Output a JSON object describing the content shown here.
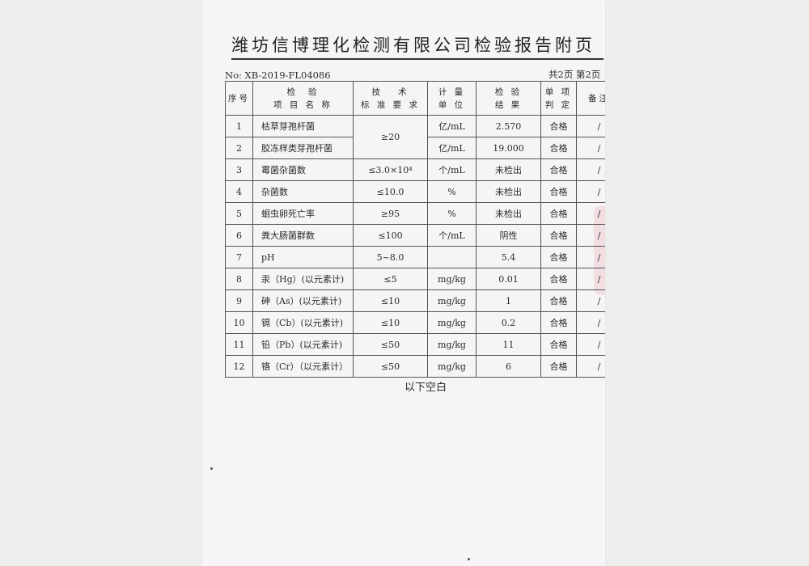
{
  "document": {
    "title": "潍坊信博理化检测有限公司检验报告附页",
    "report_no": "No:  XB-2019-FL04086",
    "page_info": "共2页  第2页",
    "headers": [
      "序号",
      "检  验\n项 目 名 称",
      "技   术\n标 准 要 求",
      "计 量\n单 位",
      "检 验\n结 果",
      "单 项\n判 定",
      "备注"
    ],
    "rows": [
      {
        "no": "1",
        "item": "枯草芽孢杆菌",
        "standard": "≥20",
        "unit": "亿/mL",
        "result": "2.570",
        "judge": "合格",
        "remark": "/"
      },
      {
        "no": "2",
        "item": "胶冻样类芽孢杆菌",
        "standard": "",
        "unit": "亿/mL",
        "result": "19.000",
        "judge": "合格",
        "remark": "/"
      },
      {
        "no": "3",
        "item": "霉菌杂菌数",
        "standard": "≤3.0×10⁴",
        "unit": "个/mL",
        "result": "未检出",
        "judge": "合格",
        "remark": "/"
      },
      {
        "no": "4",
        "item": "杂菌数",
        "standard": "≤10.0",
        "unit": "%",
        "result": "未检出",
        "judge": "合格",
        "remark": "/"
      },
      {
        "no": "5",
        "item": "蛔虫卵死亡率",
        "standard": "≥95",
        "unit": "%",
        "result": "未检出",
        "judge": "合格",
        "remark": "/"
      },
      {
        "no": "6",
        "item": "粪大肠菌群数",
        "standard": "≤100",
        "unit": "个/mL",
        "result": "阴性",
        "judge": "合格",
        "remark": "/"
      },
      {
        "no": "7",
        "item": "pH",
        "standard": "5~8.0",
        "unit": "",
        "result": "5.4",
        "judge": "合格",
        "remark": "/"
      },
      {
        "no": "8",
        "item": "汞（Hg）(以元素计)",
        "standard": "≤5",
        "unit": "mg/kg",
        "result": "0.01",
        "judge": "合格",
        "remark": "/"
      },
      {
        "no": "9",
        "item": "砷（As）(以元素计)",
        "standard": "≤10",
        "unit": "mg/kg",
        "result": "1",
        "judge": "合格",
        "remark": "/"
      },
      {
        "no": "10",
        "item": "镉（Cb）(以元素计)",
        "standard": "≤10",
        "unit": "mg/kg",
        "result": "0.2",
        "judge": "合格",
        "remark": "/"
      },
      {
        "no": "11",
        "item": "铅（Pb）(以元素计)",
        "standard": "≤50",
        "unit": "mg/kg",
        "result": "11",
        "judge": "合格",
        "remark": "/"
      },
      {
        "no": "12",
        "item": "铬（Cr）（以元素计）",
        "standard": "≤50",
        "unit": "mg/kg",
        "result": "6",
        "judge": "合格",
        "remark": "/"
      }
    ],
    "footer_note": "以下空白"
  }
}
